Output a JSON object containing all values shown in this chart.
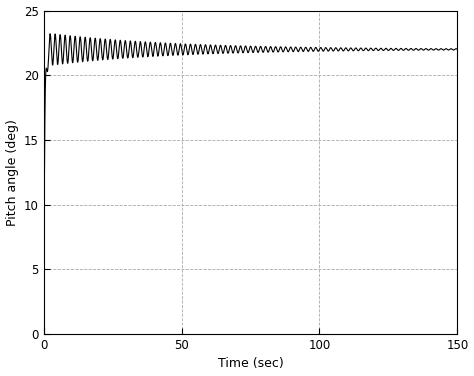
{
  "title": "",
  "xlabel": "Time (sec)",
  "ylabel": "Pitch angle (deg)",
  "xlim": [
    0,
    150
  ],
  "ylim": [
    0,
    25
  ],
  "xticks": [
    0,
    50,
    100,
    150
  ],
  "yticks": [
    0,
    5,
    10,
    15,
    20,
    25
  ],
  "steady_state": 22.0,
  "initial_value": 2.5,
  "rise_tau": 0.35,
  "osc_freq": 0.55,
  "osc_amp_initial": 1.3,
  "osc_amp_decay": 0.022,
  "line_color": "#000000",
  "grid_color": "#aaaaaa",
  "background_color": "#ffffff",
  "fig_width": 4.74,
  "fig_height": 3.76,
  "dpi": 100
}
